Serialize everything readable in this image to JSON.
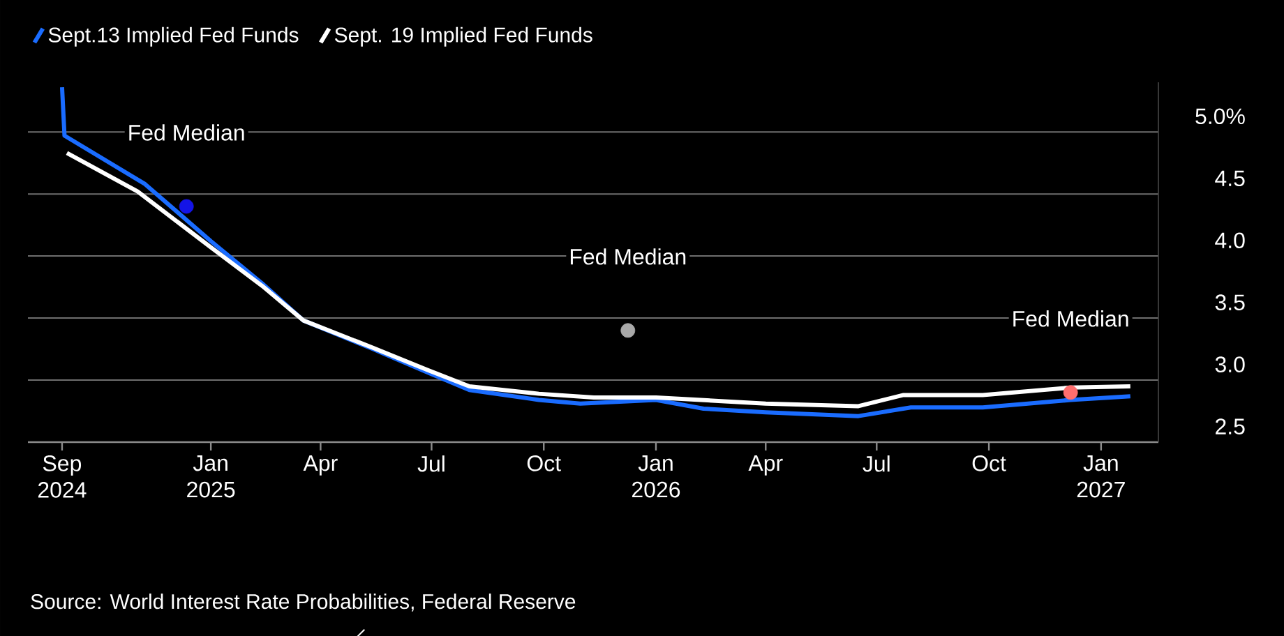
{
  "chart_data": {
    "type": "line",
    "x": [
      "2024-09-01",
      "2024-09-03",
      "2024-11-08",
      "2025-01-01",
      "2025-02-12",
      "2025-03-18",
      "2025-05-14",
      "2025-06-28",
      "2025-08-01",
      "2025-09-27",
      "2025-10-31",
      "2026-01-01",
      "2026-02-09",
      "2026-04-01",
      "2026-06-16",
      "2026-07-29",
      "2026-09-26",
      "2026-12-07",
      "2027-01-25"
    ],
    "series": [
      {
        "name": "Sept.13 Implied Fed Funds",
        "color": "#1a6cff",
        "values": [
          5.36,
          4.97,
          4.58,
          4.12,
          3.78,
          3.48,
          3.25,
          3.06,
          2.92,
          2.84,
          2.81,
          2.84,
          2.77,
          2.74,
          2.71,
          2.78,
          2.78,
          2.84,
          2.87
        ]
      },
      {
        "name": "Sept. 19 Implied Fed Funds",
        "color": "#ffffff",
        "x": [
          "2024-09-05",
          "2024-11-02",
          "2025-01-01",
          "2025-02-12",
          "2025-03-18",
          "2025-05-14",
          "2025-06-28",
          "2025-08-01",
          "2025-09-27",
          "2025-11-11",
          "2026-01-01",
          "2026-04-01",
          "2026-06-16",
          "2026-07-23",
          "2026-09-26",
          "2026-12-07",
          "2027-01-25"
        ],
        "values": [
          4.83,
          4.52,
          4.07,
          3.76,
          3.48,
          3.26,
          3.08,
          2.95,
          2.89,
          2.86,
          2.86,
          2.81,
          2.79,
          2.88,
          2.88,
          2.94,
          2.95
        ]
      },
      {
        "type": "scatter",
        "marker": "circle",
        "x": [
          "2024-12-12",
          "2025-12-09",
          "2026-12-07"
        ],
        "colors": [
          "#1414e6",
          "#a8a8a8",
          "#ff6e6e"
        ],
        "values": [
          4.4,
          3.4,
          2.9
        ]
      }
    ],
    "annotations": [
      {
        "text": "Fed Median",
        "x": "2024-12-12",
        "y": 4.4
      },
      {
        "text": "Fed Median",
        "x": "2025-12-09",
        "y": 3.4
      },
      {
        "text": "Fed Median",
        "x": "2026-12-07",
        "y": 2.9
      },
      "Source: World Interest Rate Probabilities, Federal Reserve"
    ],
    "xlim": [
      "2024-08-04",
      "2027-02-17"
    ],
    "xticks": [
      {
        "value": "2024-09",
        "label": "Sep 2024"
      },
      {
        "value": "2025-01",
        "label": "Jan 2025"
      },
      {
        "value": "2025-04",
        "label": "Apr"
      },
      {
        "value": "2025-07",
        "label": "Jul"
      },
      {
        "value": "2025-10",
        "label": "Oct"
      },
      {
        "value": "2026-01",
        "label": "Jan 2026"
      },
      {
        "value": "2026-04",
        "label": "Apr"
      },
      {
        "value": "2026-07",
        "label": "Jul"
      },
      {
        "value": "2026-10",
        "label": "Oct"
      },
      {
        "value": "2027-01",
        "label": "Jan 2027"
      }
    ],
    "ylim": [
      2.5,
      5.4
    ],
    "yticks": [
      2.5,
      {
        "value": 3,
        "label": "3.0"
      },
      3.5,
      {
        "value": 4,
        "label": "4.0"
      },
      4.5,
      {
        "value": 5,
        "label": "5.0%"
      }
    ],
    "grid": "y",
    "legend": "top left",
    "line_style": "solid"
  }
}
